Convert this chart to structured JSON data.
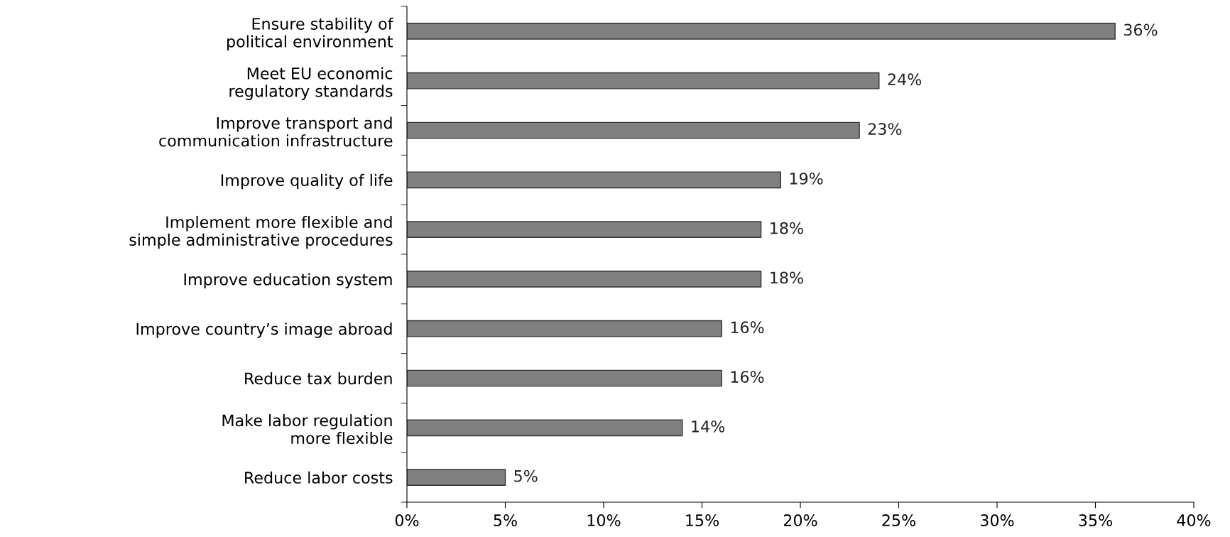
{
  "chart_data": {
    "type": "bar",
    "orientation": "horizontal",
    "categories": [
      "Ensure stability of\npolitical environment",
      "Meet EU economic\nregulatory standards",
      "Improve transport and\ncommunication infrastructure",
      "Improve quality of life",
      "Implement more flexible and\nsimple administrative procedures",
      "Improve education system",
      "Improve country’s image abroad",
      "Reduce tax burden",
      "Make labor regulation\nmore flexible",
      "Reduce labor costs"
    ],
    "values": [
      36,
      24,
      23,
      19,
      18,
      18,
      16,
      16,
      14,
      5
    ],
    "value_labels": [
      "36%",
      "24%",
      "23%",
      "19%",
      "18%",
      "18%",
      "16%",
      "16%",
      "14%",
      "5%"
    ],
    "color": "#808080",
    "xlim": [
      0,
      40
    ],
    "xticks": [
      {
        "value": 0,
        "label": "0%"
      },
      {
        "value": 5,
        "label": "5%"
      },
      {
        "value": 10,
        "label": "10%"
      },
      {
        "value": 15,
        "label": "15%"
      },
      {
        "value": 20,
        "label": "20%"
      },
      {
        "value": 25,
        "label": "25%"
      },
      {
        "value": 30,
        "label": "30%"
      },
      {
        "value": 35,
        "label": "35%"
      },
      {
        "value": 40,
        "label": "40%"
      }
    ],
    "grid": false,
    "legend": false
  }
}
